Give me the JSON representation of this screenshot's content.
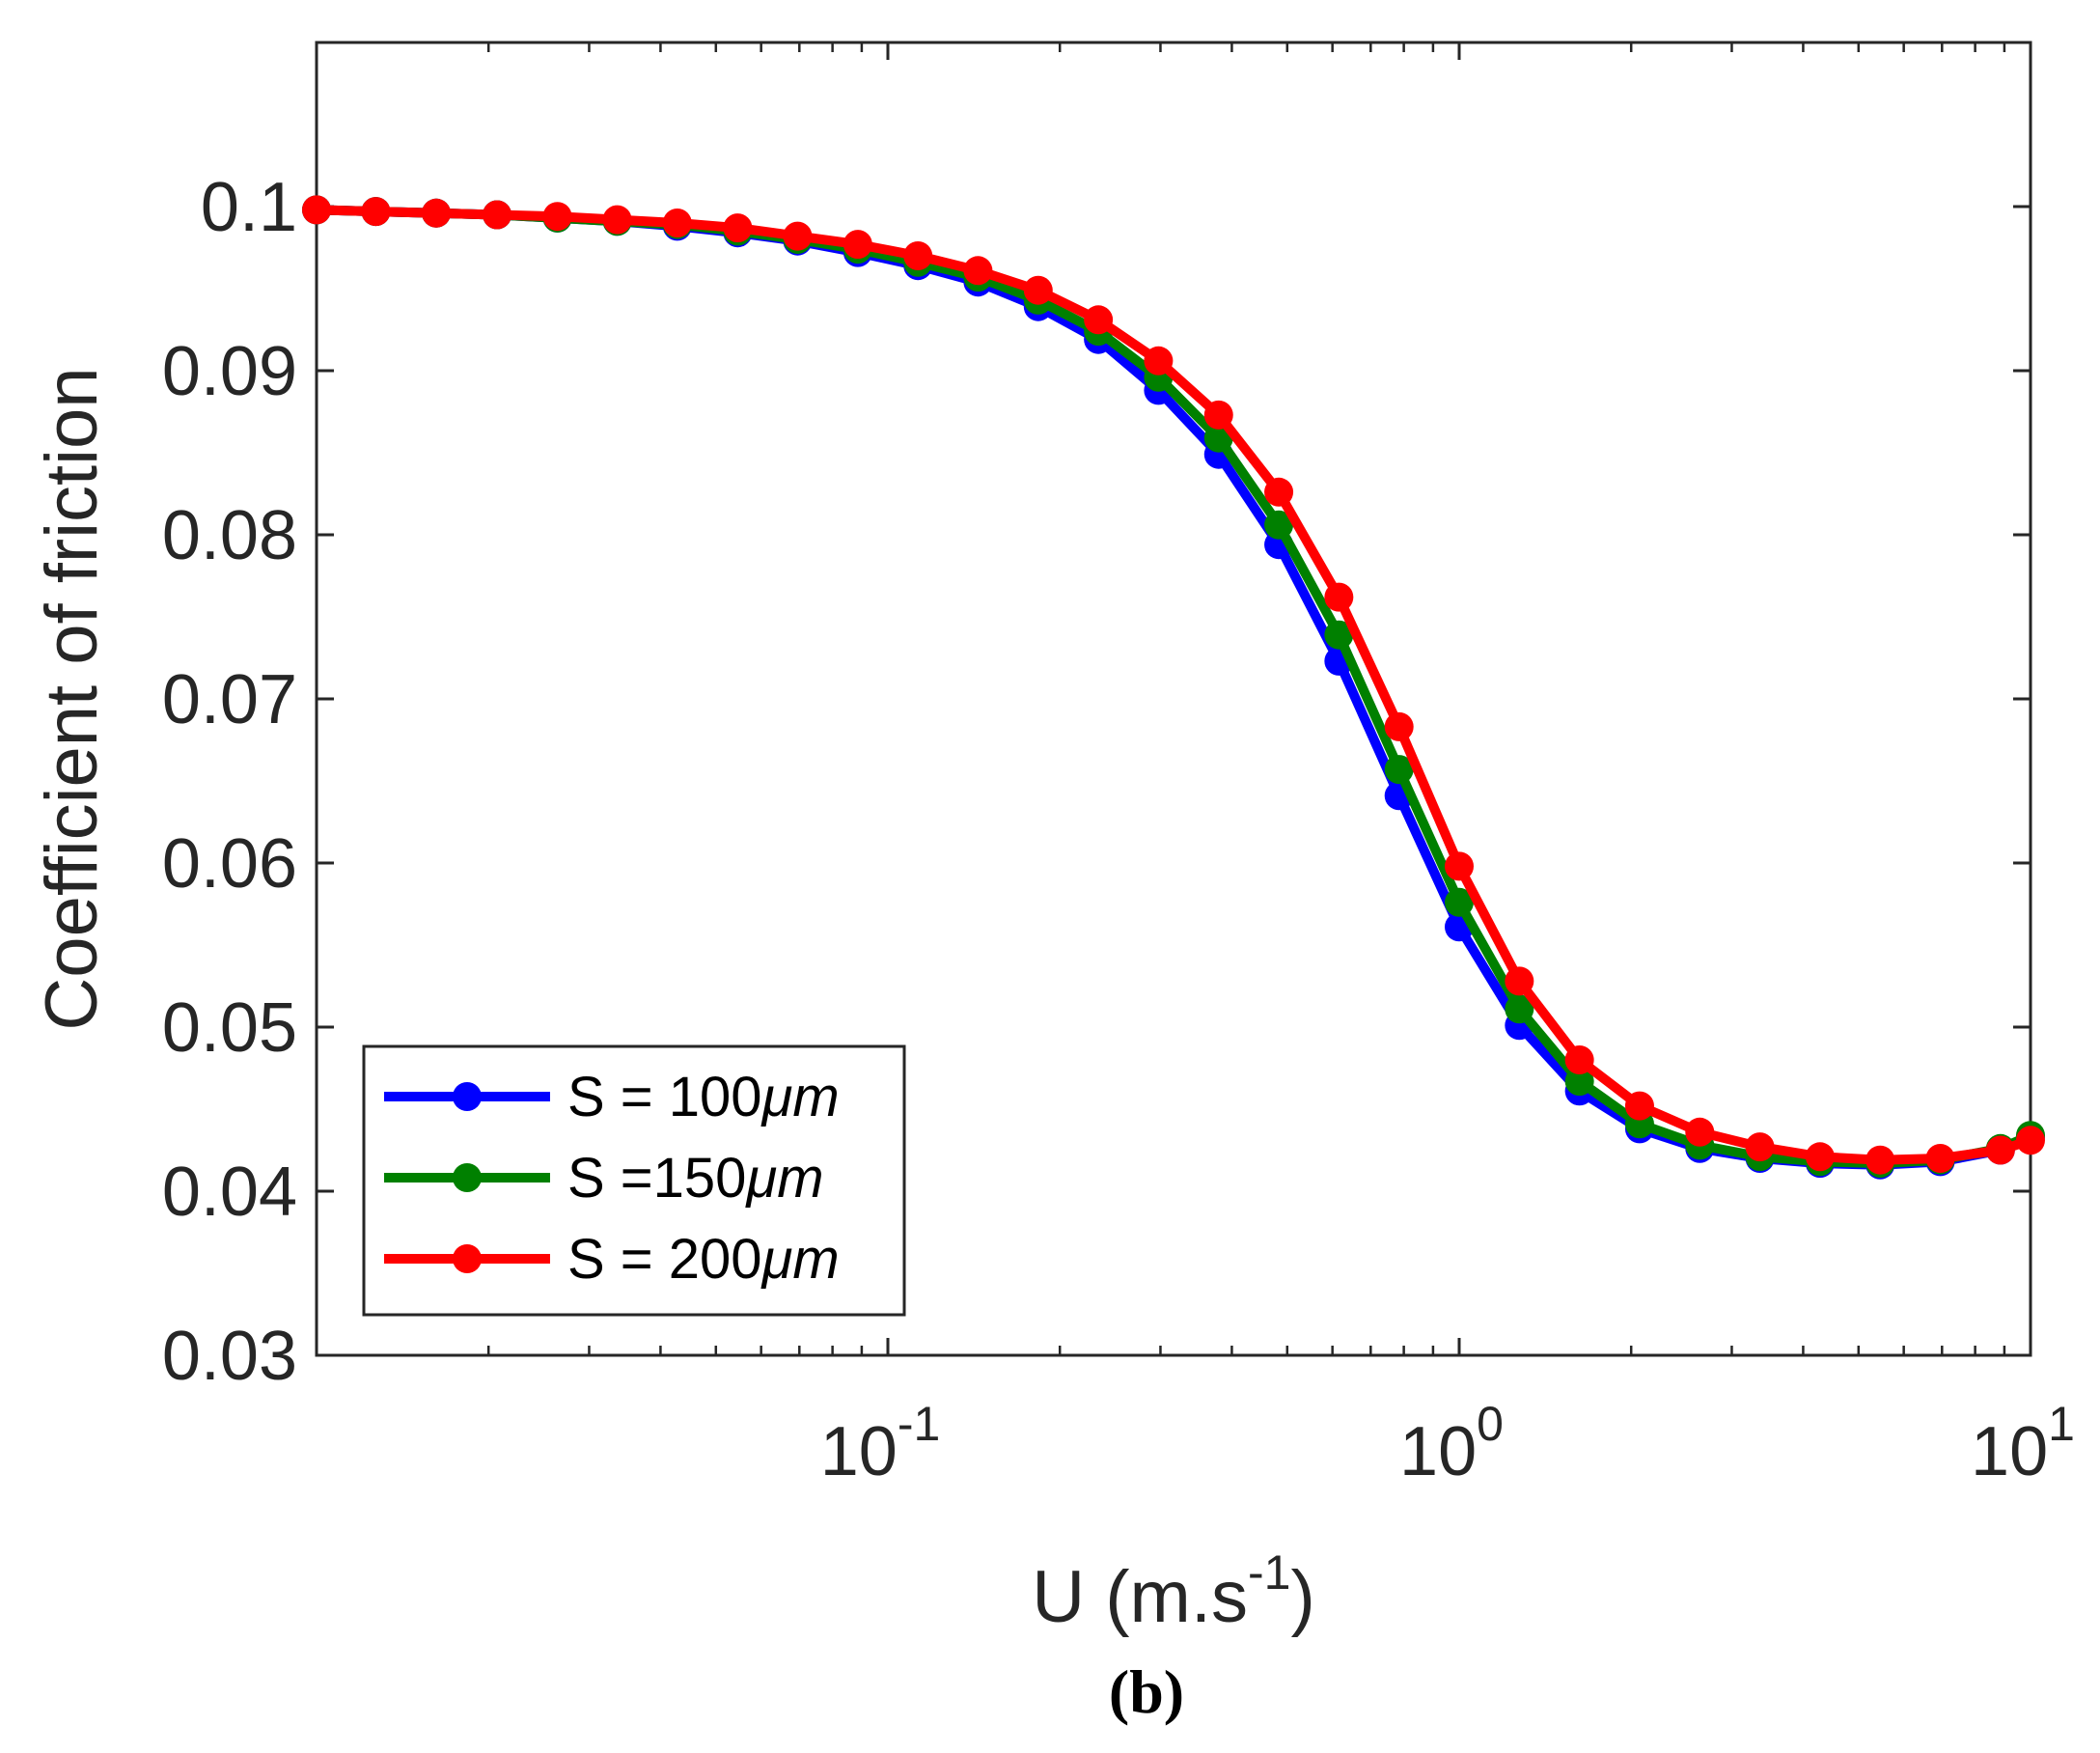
{
  "chart_data": {
    "type": "line",
    "title": "",
    "caption": "(b)",
    "xlabel": "U (m.s",
    "xlabel_exp": "-1",
    "xlabel_close": ")",
    "ylabel": "Coefficient of friction",
    "xscale": "log",
    "xlim": [
      0.01,
      10
    ],
    "ylim": [
      0.03,
      0.11
    ],
    "grid": false,
    "legend_position": "bottom-left",
    "yticks": [
      {
        "value": 0.03,
        "label": "0.03"
      },
      {
        "value": 0.04,
        "label": "0.04"
      },
      {
        "value": 0.05,
        "label": "0.05"
      },
      {
        "value": 0.06,
        "label": "0.06"
      },
      {
        "value": 0.07,
        "label": "0.07"
      },
      {
        "value": 0.08,
        "label": "0.08"
      },
      {
        "value": 0.09,
        "label": "0.09"
      },
      {
        "value": 0.1,
        "label": "0.1"
      }
    ],
    "xticks": [
      {
        "value": 0.1,
        "base": "10",
        "exp": "-1"
      },
      {
        "value": 1,
        "base": "10",
        "exp": "0"
      },
      {
        "value": 10,
        "base": "10",
        "exp": "1"
      }
    ],
    "x": [
      0.01,
      0.0127,
      0.0162,
      0.0207,
      0.0264,
      0.0336,
      0.0428,
      0.0546,
      0.0695,
      0.0886,
      0.1129,
      0.1438,
      0.1833,
      0.2336,
      0.2976,
      0.3793,
      0.4833,
      0.6158,
      0.7848,
      1.0,
      1.2743,
      1.6238,
      2.0691,
      2.6367,
      3.3598,
      4.2813,
      5.4556,
      6.9519,
      8.8587,
      10.0
    ],
    "series": [
      {
        "name": "S = 100",
        "unit": "μm",
        "color": "#0000ff",
        "values": [
          0.0998,
          0.0997,
          0.0996,
          0.0995,
          0.0993,
          0.0991,
          0.0988,
          0.0984,
          0.0979,
          0.0972,
          0.0964,
          0.0954,
          0.0939,
          0.0919,
          0.0888,
          0.0849,
          0.0794,
          0.0723,
          0.0641,
          0.0561,
          0.0501,
          0.0461,
          0.0438,
          0.0426,
          0.042,
          0.0417,
          0.0416,
          0.0418,
          0.0425,
          0.0433
        ]
      },
      {
        "name": "S =150",
        "unit": "μm",
        "color": "#008000",
        "values": [
          0.0998,
          0.0997,
          0.0996,
          0.0995,
          0.0993,
          0.0991,
          0.0989,
          0.0985,
          0.098,
          0.0974,
          0.0966,
          0.0957,
          0.0943,
          0.0924,
          0.0896,
          0.0859,
          0.0806,
          0.0739,
          0.0657,
          0.0576,
          0.0511,
          0.0467,
          0.0441,
          0.0428,
          0.0421,
          0.0418,
          0.0417,
          0.0419,
          0.0426,
          0.0434
        ]
      },
      {
        "name": "S = 200",
        "unit": "μm",
        "color": "#ff0000",
        "values": [
          0.0998,
          0.0997,
          0.0996,
          0.0995,
          0.0994,
          0.0992,
          0.099,
          0.0987,
          0.0982,
          0.0977,
          0.097,
          0.0961,
          0.0949,
          0.0931,
          0.0906,
          0.0873,
          0.0826,
          0.0762,
          0.0683,
          0.0598,
          0.0528,
          0.048,
          0.0452,
          0.0436,
          0.0427,
          0.0421,
          0.0419,
          0.042,
          0.0425,
          0.0431
        ]
      }
    ]
  }
}
